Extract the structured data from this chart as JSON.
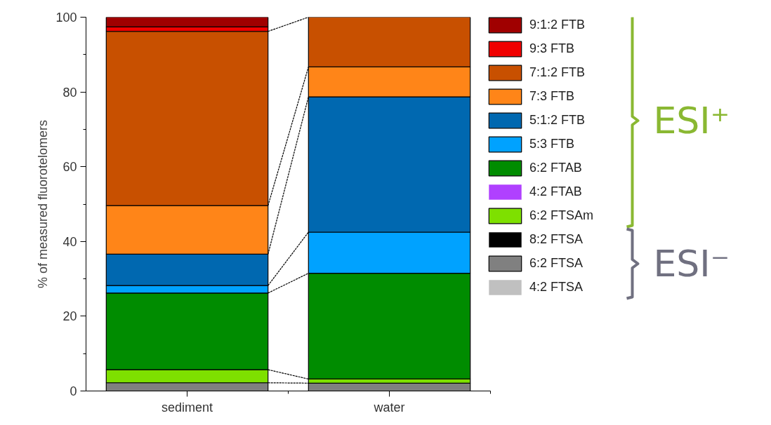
{
  "chart_data": {
    "type": "bar",
    "stacked": true,
    "categories": [
      "sediment",
      "water"
    ],
    "ylabel": "% of measured fluorotelomers",
    "ylim": [
      0,
      100
    ],
    "yticks": [
      0,
      20,
      40,
      60,
      80,
      100
    ],
    "grid": false,
    "legend": "right",
    "series": [
      {
        "name": "4:2 FTSA",
        "color": "#c0c0c0",
        "values": [
          0,
          0
        ]
      },
      {
        "name": "6:2 FTSA",
        "color": "#808080",
        "values": [
          2.2,
          2.1
        ]
      },
      {
        "name": "8:2 FTSA",
        "color": "#000000",
        "values": [
          0,
          0
        ]
      },
      {
        "name": "6:2 FTSAm",
        "color": "#7ee000",
        "values": [
          3.5,
          1.1
        ]
      },
      {
        "name": "4:2 FTAB",
        "color": "#b040ff",
        "values": [
          0,
          0
        ]
      },
      {
        "name": "6:2 FTAB",
        "color": "#008c00",
        "values": [
          20.5,
          28.3
        ]
      },
      {
        "name": "5:3 FTB",
        "color": "#00a2ff",
        "values": [
          2.0,
          11.0
        ]
      },
      {
        "name": "5:1:2 FTB",
        "color": "#0068b0",
        "values": [
          8.4,
          36.2
        ]
      },
      {
        "name": "7:3 FTB",
        "color": "#ff8518",
        "values": [
          13.0,
          8.0
        ]
      },
      {
        "name": "7:1:2 FTB",
        "color": "#c85000",
        "values": [
          46.6,
          13.3
        ]
      },
      {
        "name": "9:3 FTB",
        "color": "#f00000",
        "values": [
          1.2,
          0
        ]
      },
      {
        "name": "9:1:2 FTB",
        "color": "#a00000",
        "values": [
          2.6,
          0
        ]
      }
    ],
    "annotations": [
      "ESI⁺",
      "ESI⁻"
    ]
  }
}
